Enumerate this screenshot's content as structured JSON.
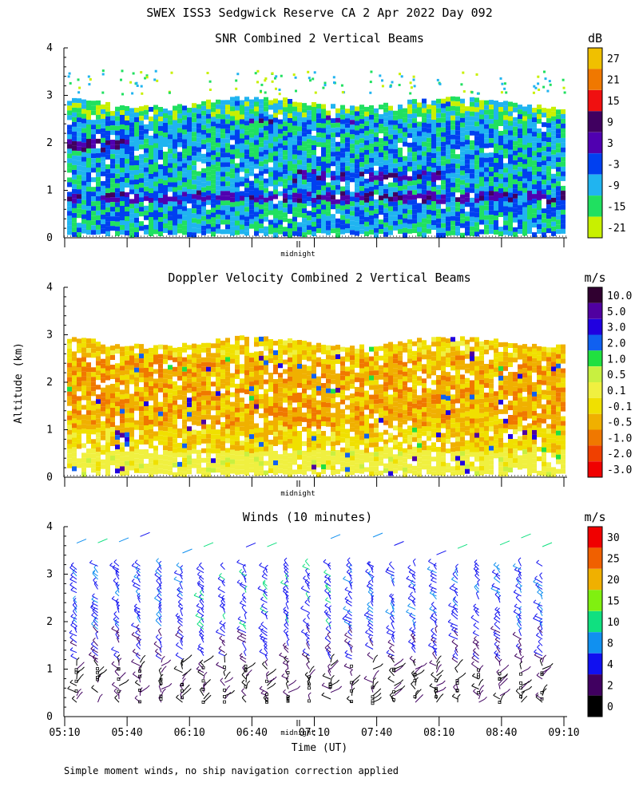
{
  "figure": {
    "title": "SWEX ISS3 Sedgwick Reserve CA   2 Apr 2022 Day 092",
    "ylabel": "Altitude (km)",
    "xlabel": "Time (UT)",
    "midnight_label": "midnight",
    "footnote": "Simple moment winds, no ship navigation correction applied"
  },
  "colors": {
    "snr": [
      "#c8f000",
      "#20e060",
      "#20b4f0",
      "#0040f0",
      "#5000b0",
      "#400060",
      "#f01010",
      "#f07800",
      "#f0c000"
    ],
    "doppler": [
      "#f00000",
      "#f04000",
      "#f07800",
      "#f0b000",
      "#f0e000",
      "#f0f040",
      "#c8f040",
      "#20e040",
      "#1060f0",
      "#2000e0",
      "#5000a0",
      "#300030"
    ],
    "winds": [
      "#000000",
      "#400060",
      "#1010f0",
      "#1090f0",
      "#10e080",
      "#80f010",
      "#f0b000",
      "#f06000",
      "#f00000"
    ]
  },
  "chart_data": [
    {
      "type": "heatmap",
      "title": "SNR Combined 2 Vertical Beams",
      "units": "dB",
      "ylim": [
        0,
        4
      ],
      "yticks": [
        0,
        1,
        2,
        3,
        4
      ],
      "colorbar_labels": [
        "27",
        "21",
        "15",
        "9",
        "3",
        "-3",
        "-9",
        "-15",
        "-21"
      ],
      "field": "snr"
    },
    {
      "type": "heatmap",
      "title": "Doppler Velocity Combined 2 Vertical Beams",
      "units": "m/s",
      "ylim": [
        0,
        4
      ],
      "yticks": [
        0,
        1,
        2,
        3,
        4
      ],
      "colorbar_labels": [
        "10.0",
        "5.0",
        "3.0",
        "2.0",
        "1.0",
        "0.5",
        "0.1",
        "-0.1",
        "-0.5",
        "-1.0",
        "-2.0",
        "-3.0"
      ],
      "field": "doppler"
    },
    {
      "type": "scatter",
      "title": "Winds (10 minutes)",
      "units": "m/s",
      "ylim": [
        0,
        4
      ],
      "yticks": [
        0,
        1,
        2,
        3,
        4
      ],
      "xticks": [
        "05:10",
        "05:40",
        "06:10",
        "06:40",
        "07:10",
        "07:40",
        "08:10",
        "08:40",
        "09:10"
      ],
      "colorbar_labels": [
        "30",
        "25",
        "20",
        "15",
        "10",
        "8",
        "4",
        "2",
        "0"
      ],
      "field": "winds"
    }
  ]
}
